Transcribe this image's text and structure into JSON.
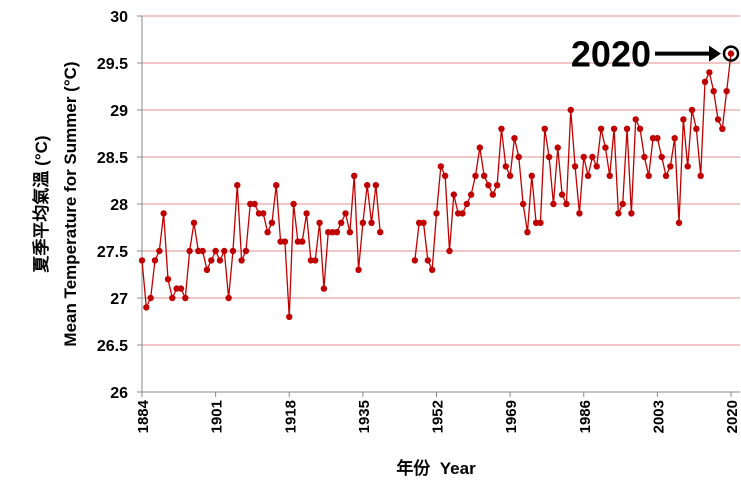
{
  "chart_data": {
    "type": "line",
    "y_label_zh": "夏季平均氣溫 (°C)",
    "y_label": "Mean Temperature for Summer (°C)",
    "x_label": "年份  Year",
    "annotation": "2020",
    "x": [
      1884,
      1885,
      1886,
      1887,
      1888,
      1889,
      1890,
      1891,
      1892,
      1893,
      1894,
      1895,
      1896,
      1897,
      1898,
      1899,
      1900,
      1901,
      1902,
      1903,
      1904,
      1905,
      1906,
      1907,
      1908,
      1909,
      1910,
      1911,
      1912,
      1913,
      1914,
      1915,
      1916,
      1917,
      1918,
      1919,
      1920,
      1921,
      1922,
      1923,
      1924,
      1925,
      1926,
      1927,
      1928,
      1929,
      1930,
      1931,
      1932,
      1933,
      1934,
      1935,
      1936,
      1937,
      1938,
      1939,
      1940,
      1941,
      1942,
      1943,
      1944,
      1945,
      1946,
      1947,
      1948,
      1949,
      1950,
      1951,
      1952,
      1953,
      1954,
      1955,
      1956,
      1957,
      1958,
      1959,
      1960,
      1961,
      1962,
      1963,
      1964,
      1965,
      1966,
      1967,
      1968,
      1969,
      1970,
      1971,
      1972,
      1973,
      1974,
      1975,
      1976,
      1977,
      1978,
      1979,
      1980,
      1981,
      1982,
      1983,
      1984,
      1985,
      1986,
      1987,
      1988,
      1989,
      1990,
      1991,
      1992,
      1993,
      1994,
      1995,
      1996,
      1997,
      1998,
      1999,
      2000,
      2001,
      2002,
      2003,
      2004,
      2005,
      2006,
      2007,
      2008,
      2009,
      2010,
      2011,
      2012,
      2013,
      2014,
      2015,
      2016,
      2017,
      2018,
      2019,
      2020
    ],
    "series": [
      {
        "color": "#c00000",
        "values": [
          27.4,
          26.9,
          27.0,
          27.4,
          27.5,
          27.9,
          27.2,
          27.0,
          27.1,
          27.1,
          27.0,
          27.5,
          27.8,
          27.5,
          27.5,
          27.3,
          27.4,
          27.5,
          27.4,
          27.5,
          27.0,
          27.5,
          28.2,
          27.4,
          27.5,
          28.0,
          28.0,
          27.9,
          27.9,
          27.7,
          27.8,
          28.2,
          27.6,
          27.6,
          26.8,
          28.0,
          27.6,
          27.6,
          27.9,
          27.4,
          27.4,
          27.8,
          27.1,
          27.7,
          27.7,
          27.7,
          27.8,
          27.9,
          27.7,
          28.3,
          27.3,
          27.8,
          28.2,
          27.8,
          28.2,
          27.7,
          null,
          null,
          null,
          null,
          null,
          null,
          null,
          27.4,
          27.8,
          27.8,
          27.4,
          27.3,
          27.9,
          28.4,
          28.3,
          27.5,
          28.1,
          27.9,
          27.9,
          28.0,
          28.1,
          28.3,
          28.6,
          28.3,
          28.2,
          28.1,
          28.2,
          28.8,
          28.4,
          28.3,
          28.7,
          28.5,
          28.0,
          27.7,
          28.3,
          27.8,
          27.8,
          28.8,
          28.5,
          28.0,
          28.6,
          28.1,
          28.0,
          29.0,
          28.4,
          27.9,
          28.5,
          28.3,
          28.5,
          28.4,
          28.8,
          28.6,
          28.3,
          28.8,
          27.9,
          28.0,
          28.8,
          27.9,
          28.9,
          28.8,
          28.5,
          28.3,
          28.7,
          28.7,
          28.5,
          28.3,
          28.4,
          28.7,
          27.8,
          28.9,
          28.4,
          29.0,
          28.8,
          28.3,
          29.3,
          29.4,
          29.2,
          28.9,
          28.8,
          29.2,
          29.6
        ]
      }
    ],
    "xlim": [
      1884,
      2020
    ],
    "xticks": [
      1884,
      1901,
      1918,
      1935,
      1952,
      1969,
      1986,
      2003,
      2020
    ],
    "ylim": [
      26,
      30
    ],
    "yticks": [
      26,
      26.5,
      27,
      27.5,
      28,
      28.5,
      29,
      29.5,
      30
    ],
    "grid": true,
    "grid_color": "#e8a3a3"
  }
}
